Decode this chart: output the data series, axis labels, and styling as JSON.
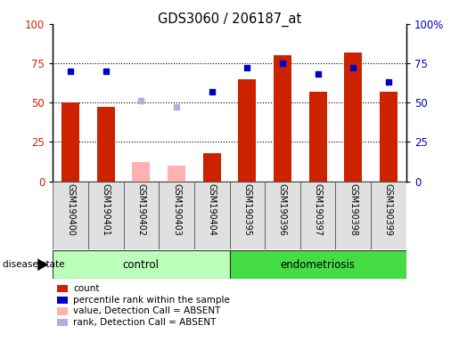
{
  "title": "GDS3060 / 206187_at",
  "samples": [
    "GSM190400",
    "GSM190401",
    "GSM190402",
    "GSM190403",
    "GSM190404",
    "GSM190395",
    "GSM190396",
    "GSM190397",
    "GSM190398",
    "GSM190399"
  ],
  "n_control": 5,
  "n_endo": 5,
  "bar_values": [
    50,
    47,
    0,
    0,
    18,
    65,
    80,
    57,
    82,
    57
  ],
  "absent_bar_values": [
    0,
    0,
    12,
    10,
    0,
    0,
    0,
    0,
    0,
    0
  ],
  "dot_values": [
    70,
    70,
    0,
    0,
    57,
    72,
    75,
    68,
    72,
    63
  ],
  "absent_dot_values": [
    0,
    0,
    51,
    47,
    0,
    0,
    0,
    0,
    0,
    0
  ],
  "bar_color": "#cc2200",
  "absent_bar_color": "#ffb0b0",
  "dot_color": "#0000cc",
  "absent_dot_color": "#b0b0dd",
  "ylim": [
    0,
    100
  ],
  "yticks": [
    0,
    25,
    50,
    75,
    100
  ],
  "control_color": "#bbffbb",
  "endo_color": "#44dd44",
  "group_label_control": "control",
  "group_label_endo": "endometriosis",
  "disease_state_label": "disease state",
  "legend_items": [
    {
      "color": "#cc2200",
      "label": "count"
    },
    {
      "color": "#0000cc",
      "label": "percentile rank within the sample"
    },
    {
      "color": "#ffb0b0",
      "label": "value, Detection Call = ABSENT"
    },
    {
      "color": "#b0b0dd",
      "label": "rank, Detection Call = ABSENT"
    }
  ],
  "bar_width": 0.5
}
